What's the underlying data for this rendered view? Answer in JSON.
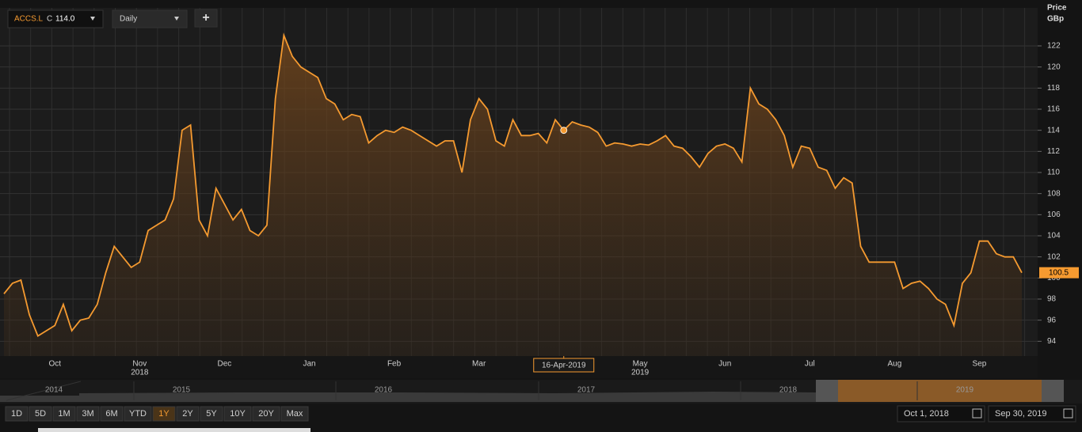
{
  "chart_data": {
    "type": "line",
    "toolbar": {
      "symbol": "ACCS.L",
      "close_label": "C",
      "close": "114.0",
      "interval": "Daily",
      "add": "+"
    },
    "ylabel": "Price",
    "yunit": "GBp",
    "color": "#f59a30",
    "ylim": [
      92.6,
      125.6
    ],
    "yticks": [
      94,
      96,
      98,
      100,
      102,
      104,
      106,
      108,
      110,
      112,
      114,
      116,
      118,
      120,
      122
    ],
    "grid": true,
    "categories": [
      null,
      null,
      null,
      null,
      null,
      null,
      "Oct",
      null,
      null,
      null,
      null,
      null,
      null,
      null,
      null,
      null,
      "Nov",
      null,
      null,
      null,
      null,
      null,
      null,
      null,
      null,
      null,
      "Dec",
      null,
      null,
      null,
      null,
      null,
      null,
      null,
      null,
      null,
      "Jan",
      null,
      null,
      null,
      null,
      null,
      null,
      null,
      null,
      null,
      "Feb",
      null,
      null,
      null,
      null,
      null,
      null,
      null,
      null,
      null,
      "Mar",
      null,
      null,
      null,
      null,
      null,
      null,
      null,
      null,
      null,
      "16-Apr-2019",
      null,
      null,
      null,
      null,
      null,
      null,
      null,
      null,
      "May",
      null,
      null,
      null,
      null,
      null,
      null,
      null,
      null,
      null,
      "Jun",
      null,
      null,
      null,
      null,
      null,
      null,
      null,
      null,
      null,
      "Jul",
      null,
      null,
      null,
      null,
      null,
      null,
      null,
      null,
      null,
      "Aug",
      null,
      null,
      null,
      null,
      null,
      null,
      null,
      null,
      null,
      "Sep",
      null,
      null,
      null,
      null,
      null
    ],
    "crosshair_index": 66,
    "year_labels": [
      {
        "index": 16,
        "label": "2018"
      },
      {
        "index": 75,
        "label": "2019"
      }
    ],
    "values": [
      98.5,
      99.5,
      99.8,
      96.5,
      94.5,
      95,
      95.5,
      97.5,
      95,
      96,
      96.2,
      97.5,
      100.5,
      103,
      102,
      101,
      101.5,
      104.5,
      105,
      105.5,
      107.5,
      114,
      114.5,
      105.5,
      104,
      108.5,
      107,
      105.5,
      106.5,
      104.5,
      104,
      105,
      117,
      123,
      121,
      120,
      119.5,
      119,
      117,
      116.5,
      115,
      115.5,
      115.3,
      112.8,
      113.5,
      114,
      113.8,
      114.3,
      114,
      113.5,
      113,
      112.5,
      113,
      113,
      110,
      115,
      117,
      116,
      113,
      112.5,
      115,
      113.5,
      113.5,
      113.7,
      112.8,
      115,
      114,
      114.8,
      114.5,
      114.3,
      113.8,
      112.5,
      112.8,
      112.7,
      112.5,
      112.7,
      112.6,
      113,
      113.5,
      112.5,
      112.3,
      111.5,
      110.5,
      111.8,
      112.5,
      112.7,
      112.3,
      111,
      118,
      116.5,
      116,
      115,
      113.5,
      110.5,
      112.5,
      112.3,
      110.5,
      110.2,
      108.5,
      109.5,
      109,
      103,
      101.5,
      101.5,
      101.5,
      101.5,
      99,
      99.5,
      99.7,
      99,
      98,
      97.5,
      95.5,
      99.5,
      100.5,
      103.5,
      103.5,
      102.3,
      102,
      102,
      100.5
    ],
    "navigator_years": [
      "2014",
      "2015",
      "2016",
      "2017",
      "2018",
      "2019"
    ],
    "ranges": [
      "1D",
      "5D",
      "1M",
      "3M",
      "6M",
      "YTD",
      "1Y",
      "2Y",
      "5Y",
      "10Y",
      "20Y",
      "Max"
    ],
    "active_range": "1Y",
    "start_date": "Oct 1, 2018",
    "end_date": "Sep 30, 2019"
  }
}
